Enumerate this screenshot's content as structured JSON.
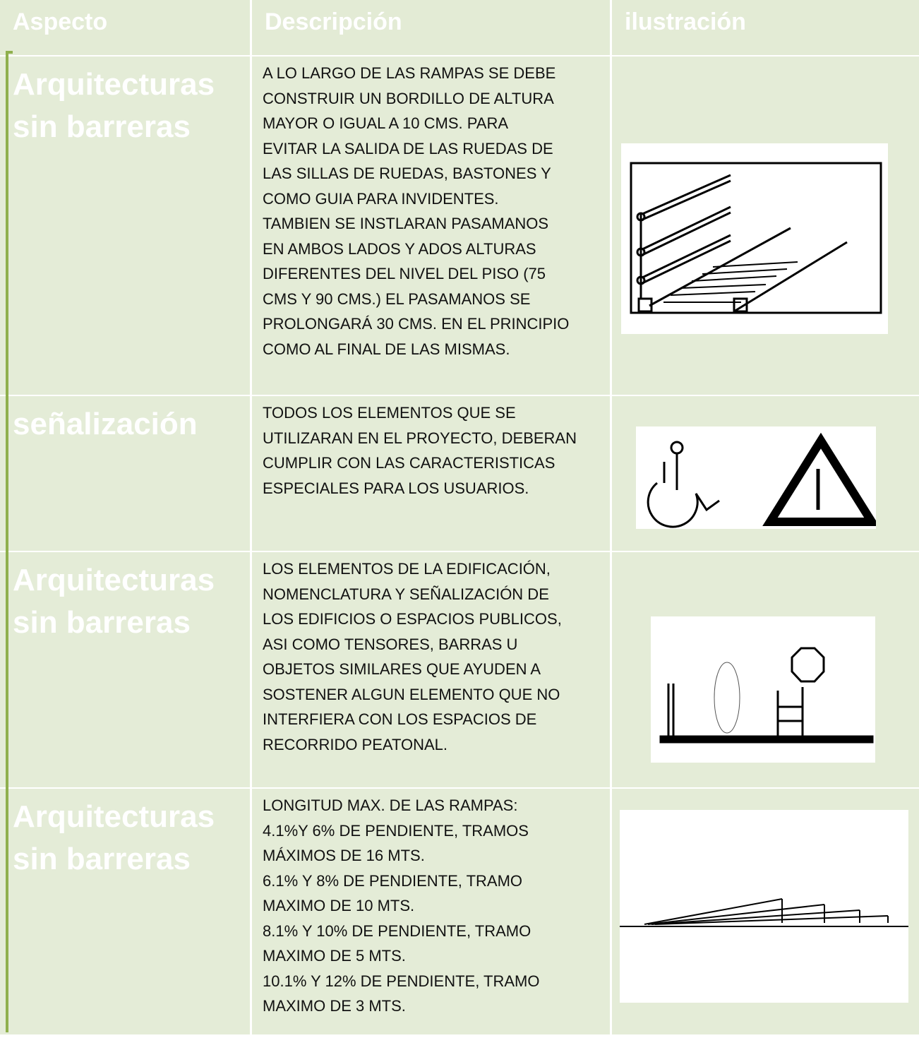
{
  "table": {
    "header": [
      "Aspecto",
      "Descripción",
      "ilustración"
    ],
    "rows": [
      {
        "aspect": [
          "Arquitecturas",
          "sin barreras"
        ],
        "description": [
          "A LO LARGO DE LAS RAMPAS SE DEBE",
          "CONSTRUIR UN BORDILLO DE ALTURA",
          "MAYOR O IGUAL A 10 CMS. PARA",
          "EVITAR LA SALIDA DE LAS RUEDAS DE",
          "LAS SILLAS DE RUEDAS, BASTONES Y",
          "COMO GUIA PARA INVIDENTES.",
          "TAMBIEN SE INSTLARAN PASAMANOS",
          "EN AMBOS LADOS Y ADOS ALTURAS",
          "DIFERENTES DEL NIVEL DEL PISO (75",
          "CMS Y 90 CMS.) EL PASAMANOS SE",
          "PROLONGARÁ 30 CMS. EN EL PRINCIPIO",
          "COMO AL FINAL DE LAS MISMAS."
        ]
      },
      {
        "aspect": [
          "señalización"
        ],
        "description": [
          "TODOS LOS ELEMENTOS QUE SE",
          "UTILIZARAN EN EL PROYECTO, DEBERAN",
          "CUMPLIR CON LAS CARACTERISTICAS",
          "ESPECIALES  PARA LOS USUARIOS."
        ]
      },
      {
        "aspect": [
          "Arquitecturas",
          "sin barreras"
        ],
        "description": [
          "LOS ELEMENTOS DE LA EDIFICACIÓN,",
          "NOMENCLATURA Y SEÑALIZACIÓN DE",
          "LOS EDIFICIOS O ESPACIOS PUBLICOS,",
          "ASI COMO TENSORES, BARRAS U",
          "OBJETOS SIMILARES QUE AYUDEN A",
          "SOSTENER ALGUN ELEMENTO QUE NO",
          "INTERFIERA CON LOS ESPACIOS DE",
          "RECORRIDO PEATONAL."
        ]
      },
      {
        "aspect": [
          "Arquitecturas",
          "sin barreras"
        ],
        "description": [
          "LONGITUD MAX. DE LAS RAMPAS:",
          "4.1%Y 6% DE PENDIENTE, TRAMOS",
          "MÁXIMOS DE 16 MTS.",
          "6.1% Y 8% DE PENDIENTE, TRAMO",
          "MAXIMO DE 10 MTS.",
          "8.1% Y 10% DE PENDIENTE, TRAMO",
          "MAXIMO DE 5 MTS.",
          "10.1% Y 12% DE PENDIENTE, TRAMO",
          "MAXIMO DE 3 MTS."
        ]
      }
    ]
  }
}
